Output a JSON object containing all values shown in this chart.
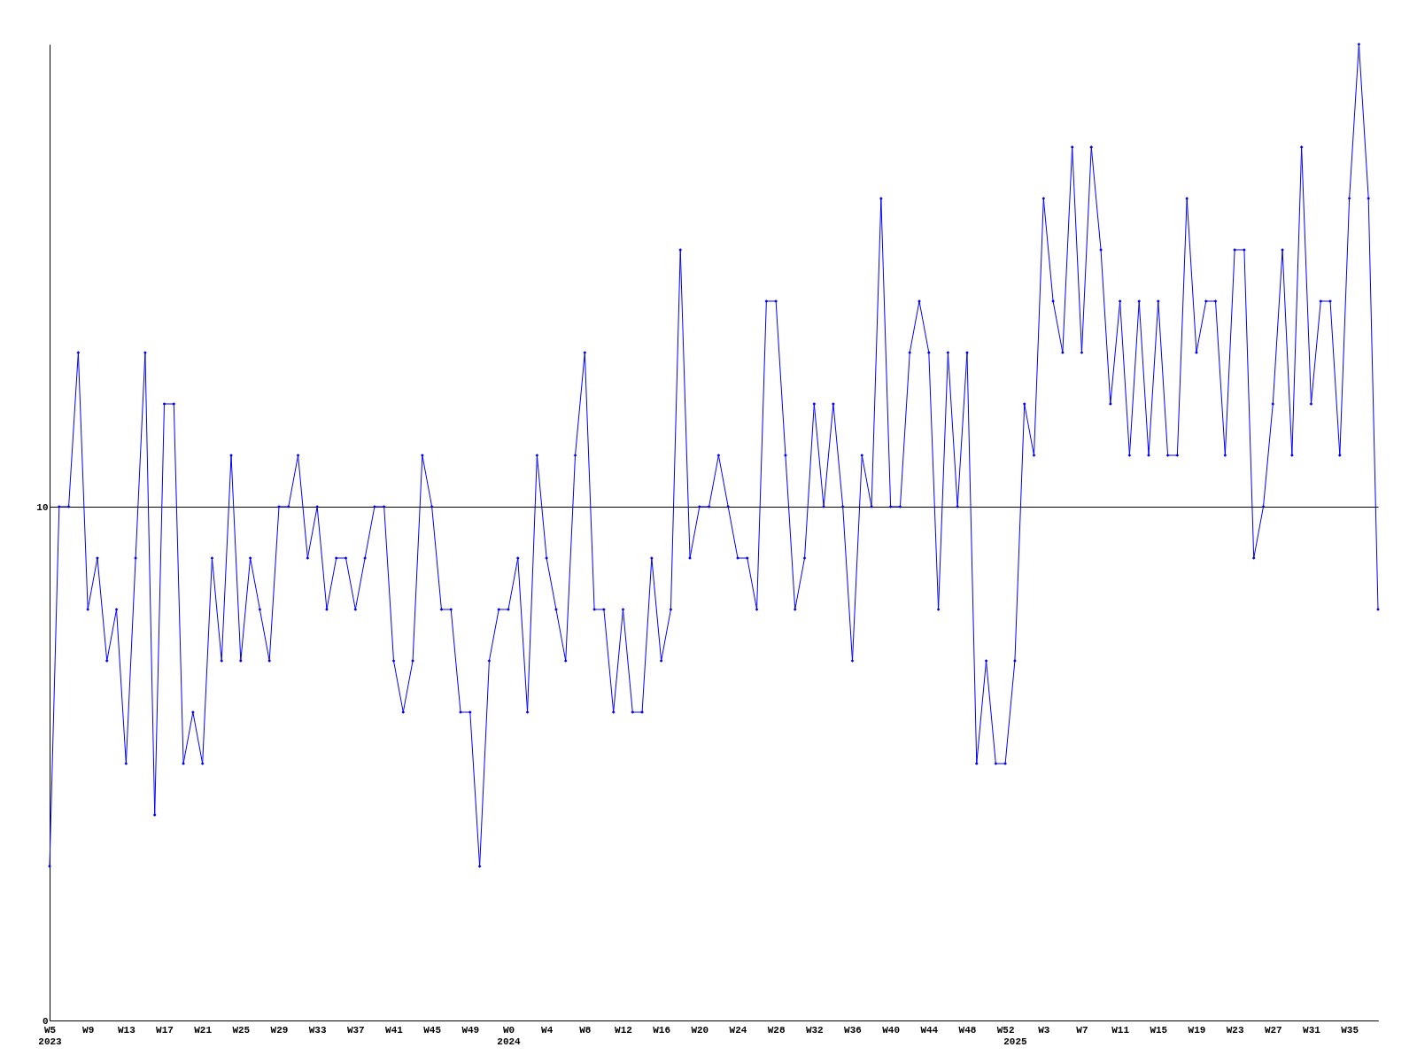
{
  "chart_data": {
    "type": "line",
    "categories": [
      "W5\n2023",
      null,
      null,
      null,
      "W9",
      null,
      null,
      null,
      "W13",
      null,
      null,
      null,
      "W17",
      null,
      null,
      null,
      "W21",
      null,
      null,
      null,
      "W25",
      null,
      null,
      null,
      "W29",
      null,
      null,
      null,
      "W33",
      null,
      null,
      null,
      "W37",
      null,
      null,
      null,
      "W41",
      null,
      null,
      null,
      "W45",
      null,
      null,
      null,
      "W49",
      null,
      null,
      null,
      "W0\n2024",
      null,
      null,
      null,
      "W4",
      null,
      null,
      null,
      "W8",
      null,
      null,
      null,
      "W12",
      null,
      null,
      null,
      "W16",
      null,
      null,
      null,
      "W20",
      null,
      null,
      null,
      "W24",
      null,
      null,
      null,
      "W28",
      null,
      null,
      null,
      "W32",
      null,
      null,
      null,
      "W36",
      null,
      null,
      null,
      "W40",
      null,
      null,
      null,
      "W44",
      null,
      null,
      null,
      "W48",
      null,
      null,
      null,
      "W52",
      "\n2025",
      null,
      null,
      "W3",
      null,
      null,
      null,
      "W7",
      null,
      null,
      null,
      "W11",
      null,
      null,
      null,
      "W15",
      null,
      null,
      null,
      "W19",
      null,
      null,
      null,
      "W23",
      null,
      null,
      null,
      "W27",
      null,
      null,
      null,
      "W31",
      null,
      null,
      null,
      "W35",
      null,
      null,
      null
    ],
    "series": [
      {
        "color": "#0000ff",
        "values": [
          3,
          10,
          10,
          13,
          8,
          9,
          7,
          8,
          5,
          9,
          13,
          4,
          12,
          12,
          5,
          6,
          5,
          9,
          7,
          11,
          7,
          9,
          8,
          7,
          10,
          10,
          11,
          9,
          10,
          8,
          9,
          9,
          8,
          9,
          10,
          10,
          7,
          6,
          7,
          11,
          10,
          8,
          8,
          6,
          6,
          3,
          7,
          8,
          8,
          9,
          6,
          11,
          9,
          8,
          7,
          11,
          13,
          8,
          8,
          6,
          8,
          6,
          6,
          9,
          7,
          8,
          15,
          9,
          10,
          10,
          11,
          10,
          9,
          9,
          8,
          14,
          14,
          11,
          8,
          9,
          12,
          10,
          12,
          10,
          7,
          11,
          10,
          16,
          10,
          10,
          13,
          14,
          13,
          8,
          13,
          10,
          13,
          5,
          7,
          5,
          5,
          7,
          12,
          11,
          16,
          14,
          13,
          17,
          13,
          17,
          15,
          12,
          14,
          11,
          14,
          11,
          14,
          11,
          11,
          16,
          13,
          14,
          14,
          11,
          15,
          15,
          9,
          10,
          12,
          15,
          11,
          17,
          12,
          14,
          14,
          11,
          16,
          19,
          16,
          8
        ]
      }
    ],
    "ylim": [
      0,
      19
    ],
    "yticks": [
      0,
      10
    ],
    "grid": "y",
    "marker": "diamond",
    "line_style": "solid"
  }
}
